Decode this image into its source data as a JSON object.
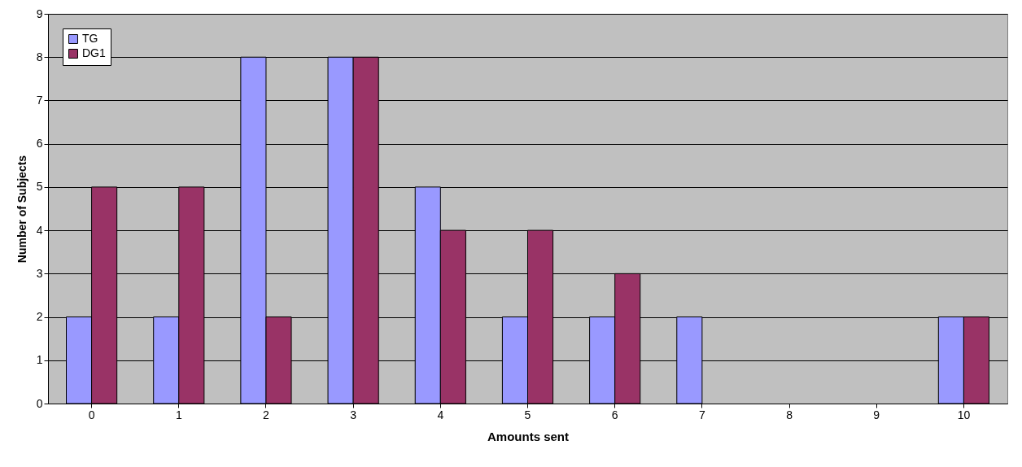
{
  "chart_data": {
    "type": "bar",
    "xlabel": "Amounts sent",
    "ylabel": "Number of Subjects",
    "categories": [
      "0",
      "1",
      "2",
      "3",
      "4",
      "5",
      "6",
      "7",
      "8",
      "9",
      "10"
    ],
    "series": [
      {
        "name": "TG",
        "color": "#9999ff",
        "values": [
          2,
          2,
          8,
          8,
          5,
          2,
          2,
          2,
          null,
          null,
          2
        ]
      },
      {
        "name": "DG1",
        "color": "#993366",
        "values": [
          5,
          5,
          2,
          8,
          4,
          4,
          3,
          null,
          null,
          null,
          2
        ]
      }
    ],
    "ylim": [
      0,
      9
    ],
    "yticks": [
      0,
      1,
      2,
      3,
      4,
      5,
      6,
      7,
      8,
      9
    ],
    "grid": "y",
    "legend": "top left"
  }
}
